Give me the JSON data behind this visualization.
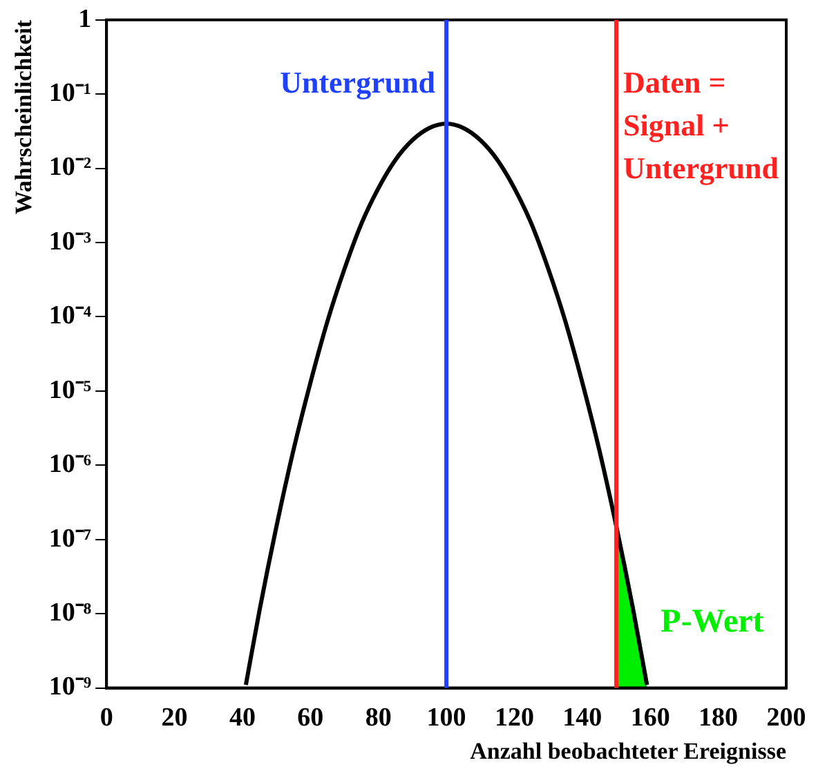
{
  "chart_data": {
    "type": "line",
    "xlabel": "Anzahl beobachteter Ereignisse",
    "ylabel": "Wahrscheinlichkeit",
    "log": "y",
    "legend": false,
    "grid": false,
    "xlim": [
      0,
      200
    ],
    "xticks": [
      0,
      20,
      40,
      60,
      80,
      100,
      120,
      140,
      160,
      180,
      200
    ],
    "ylim": [
      1e-09,
      1
    ],
    "yticks": [
      {
        "value": 1e-09,
        "label": "10⁻⁹"
      },
      {
        "value": 1e-08,
        "label": "10⁻⁸"
      },
      {
        "value": 1e-07,
        "label": "10⁻⁷"
      },
      {
        "value": 1e-06,
        "label": "10⁻⁶"
      },
      {
        "value": 1e-05,
        "label": "10⁻⁵"
      },
      {
        "value": 0.0001,
        "label": "10⁻⁴"
      },
      {
        "value": 0.001,
        "label": "10⁻³"
      },
      {
        "value": 0.01,
        "label": "10⁻²"
      },
      {
        "value": 0.1,
        "label": "10⁻¹"
      },
      1
    ],
    "series": [
      {
        "color": "#000000",
        "x": [
          41,
          45,
          50,
          55,
          60,
          65,
          70,
          75,
          80,
          85,
          90,
          95,
          100,
          105,
          110,
          115,
          120,
          125,
          130,
          135,
          140,
          145,
          150,
          155,
          159
        ],
        "values": [
          1.1e-09,
          1.1e-08,
          1.5e-07,
          1.6e-06,
          1.3e-05,
          8.7e-05,
          0.00044,
          0.0018,
          0.0054,
          0.013,
          0.024,
          0.035,
          0.04,
          0.035,
          0.024,
          0.013,
          0.0054,
          0.0018,
          0.00044,
          8.7e-05,
          1.3e-05,
          1.6e-06,
          1.5e-07,
          1.1e-08,
          1.1e-09
        ]
      },
      {
        "type": "area",
        "name": "P-Wert",
        "color": "#00ee00",
        "x": [
          150,
          155,
          159
        ],
        "values": [
          1.5e-07,
          1.1e-08,
          1.1e-09
        ]
      }
    ],
    "ref_lines": [
      {
        "axis": "x",
        "value": 100,
        "label": "Untergrund",
        "color": "#2040ff"
      },
      {
        "axis": "x",
        "value": 150,
        "label": "Daten =\nSignal +\nUntergrund",
        "color": "#ff2020"
      }
    ]
  }
}
